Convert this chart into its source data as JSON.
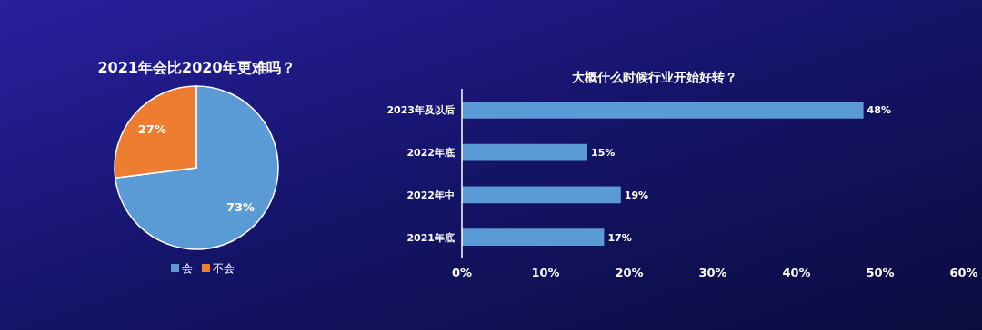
{
  "chart_data": [
    {
      "type": "pie",
      "title": "2021年会比2020年更难吗？",
      "categories": [
        "会",
        "不会"
      ],
      "values": [
        73,
        27
      ],
      "colors": [
        "#5b9bd5",
        "#ed7d31"
      ],
      "value_labels": [
        "73%",
        "27%"
      ],
      "legend": "bottom"
    },
    {
      "type": "bar",
      "orientation": "horizontal",
      "title": "大概什么时候行业开始好转？",
      "categories": [
        "2023年及以后",
        "2022年底",
        "2022年中",
        "2021年底"
      ],
      "values": [
        48,
        15,
        19,
        17
      ],
      "color": "#5b9bd5",
      "value_labels": [
        "48%",
        "15%",
        "19%",
        "17%"
      ],
      "xlim": [
        0,
        60
      ],
      "xticks": [
        {
          "value": 0,
          "label": "0%"
        },
        {
          "value": 10,
          "label": "10%"
        },
        {
          "value": 20,
          "label": "20%"
        },
        {
          "value": 30,
          "label": "30%"
        },
        {
          "value": 40,
          "label": "40%"
        },
        {
          "value": 50,
          "label": "50%"
        },
        {
          "value": 60,
          "label": "60%"
        }
      ],
      "grid": false,
      "legend": false
    }
  ]
}
